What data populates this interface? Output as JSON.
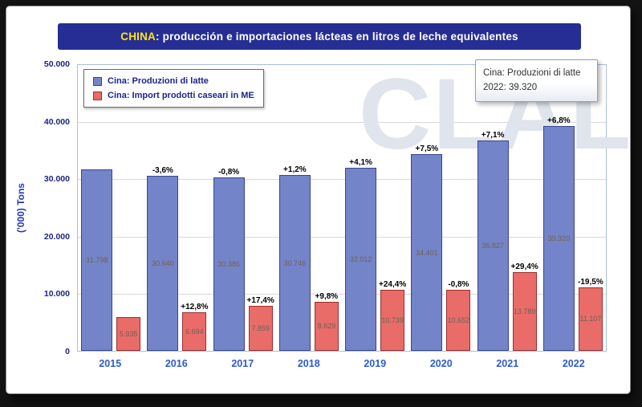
{
  "title": {
    "highlight": "CHINA",
    "rest": ": producción e importaciones lácteas en litros de leche equivalentes"
  },
  "legend": {
    "items": [
      {
        "label": "Cina: Produzioni di latte",
        "color": "#7484c9",
        "border_color": "#39458f"
      },
      {
        "label": "Cina: Import prodotti caseari in ME",
        "color": "#e96c68",
        "border_color": "#9c2f2f"
      }
    ]
  },
  "tooltip": {
    "line1": "Cina: Produzioni di latte",
    "line2": "2022: 39.320"
  },
  "watermark": "CLAL",
  "y_axis": {
    "label": "('000) Tons",
    "ticks": [
      "50.000",
      "40.000",
      "30.000",
      "20.000",
      "10.000",
      "0"
    ]
  },
  "chart_data": {
    "type": "bar",
    "title": "CHINA: producción e importaciones lácteas en litros de leche equivalentes",
    "categories": [
      "2015",
      "2016",
      "2017",
      "2018",
      "2019",
      "2020",
      "2021",
      "2022"
    ],
    "series": [
      {
        "name": "Cina: Produzioni di latte",
        "color": "#7484c9",
        "border_color": "#39458f",
        "values": [
          31798,
          30640,
          30386,
          30746,
          32012,
          34401,
          36827,
          39320
        ],
        "value_labels": [
          "31.798",
          "30.640",
          "30.386",
          "30.746",
          "32.012",
          "34.401",
          "36.827",
          "39.320"
        ],
        "pct_labels": [
          "",
          "-3,6%",
          "-0,8%",
          "+1,2%",
          "+4,1%",
          "+7,5%",
          "+7,1%",
          "+6,8%"
        ]
      },
      {
        "name": "Cina: Import prodotti caseari in ME",
        "color": "#e96c68",
        "border_color": "#9c2f2f",
        "values": [
          5935,
          6694,
          7859,
          8629,
          10739,
          10652,
          13789,
          11107
        ],
        "value_labels": [
          "5.935",
          "6.694",
          "7.859",
          "8.629",
          "10.739",
          "10.652",
          "13.789",
          "11.107"
        ],
        "pct_labels": [
          "",
          "+12,8%",
          "+17,4%",
          "+9,8%",
          "+24,4%",
          "-0,8%",
          "+29,4%",
          "-19,5%"
        ]
      }
    ],
    "xlabel": "",
    "ylabel": "('000) Tons",
    "ylim": [
      0,
      50000
    ],
    "grid": true,
    "legend_position": "top-left"
  }
}
